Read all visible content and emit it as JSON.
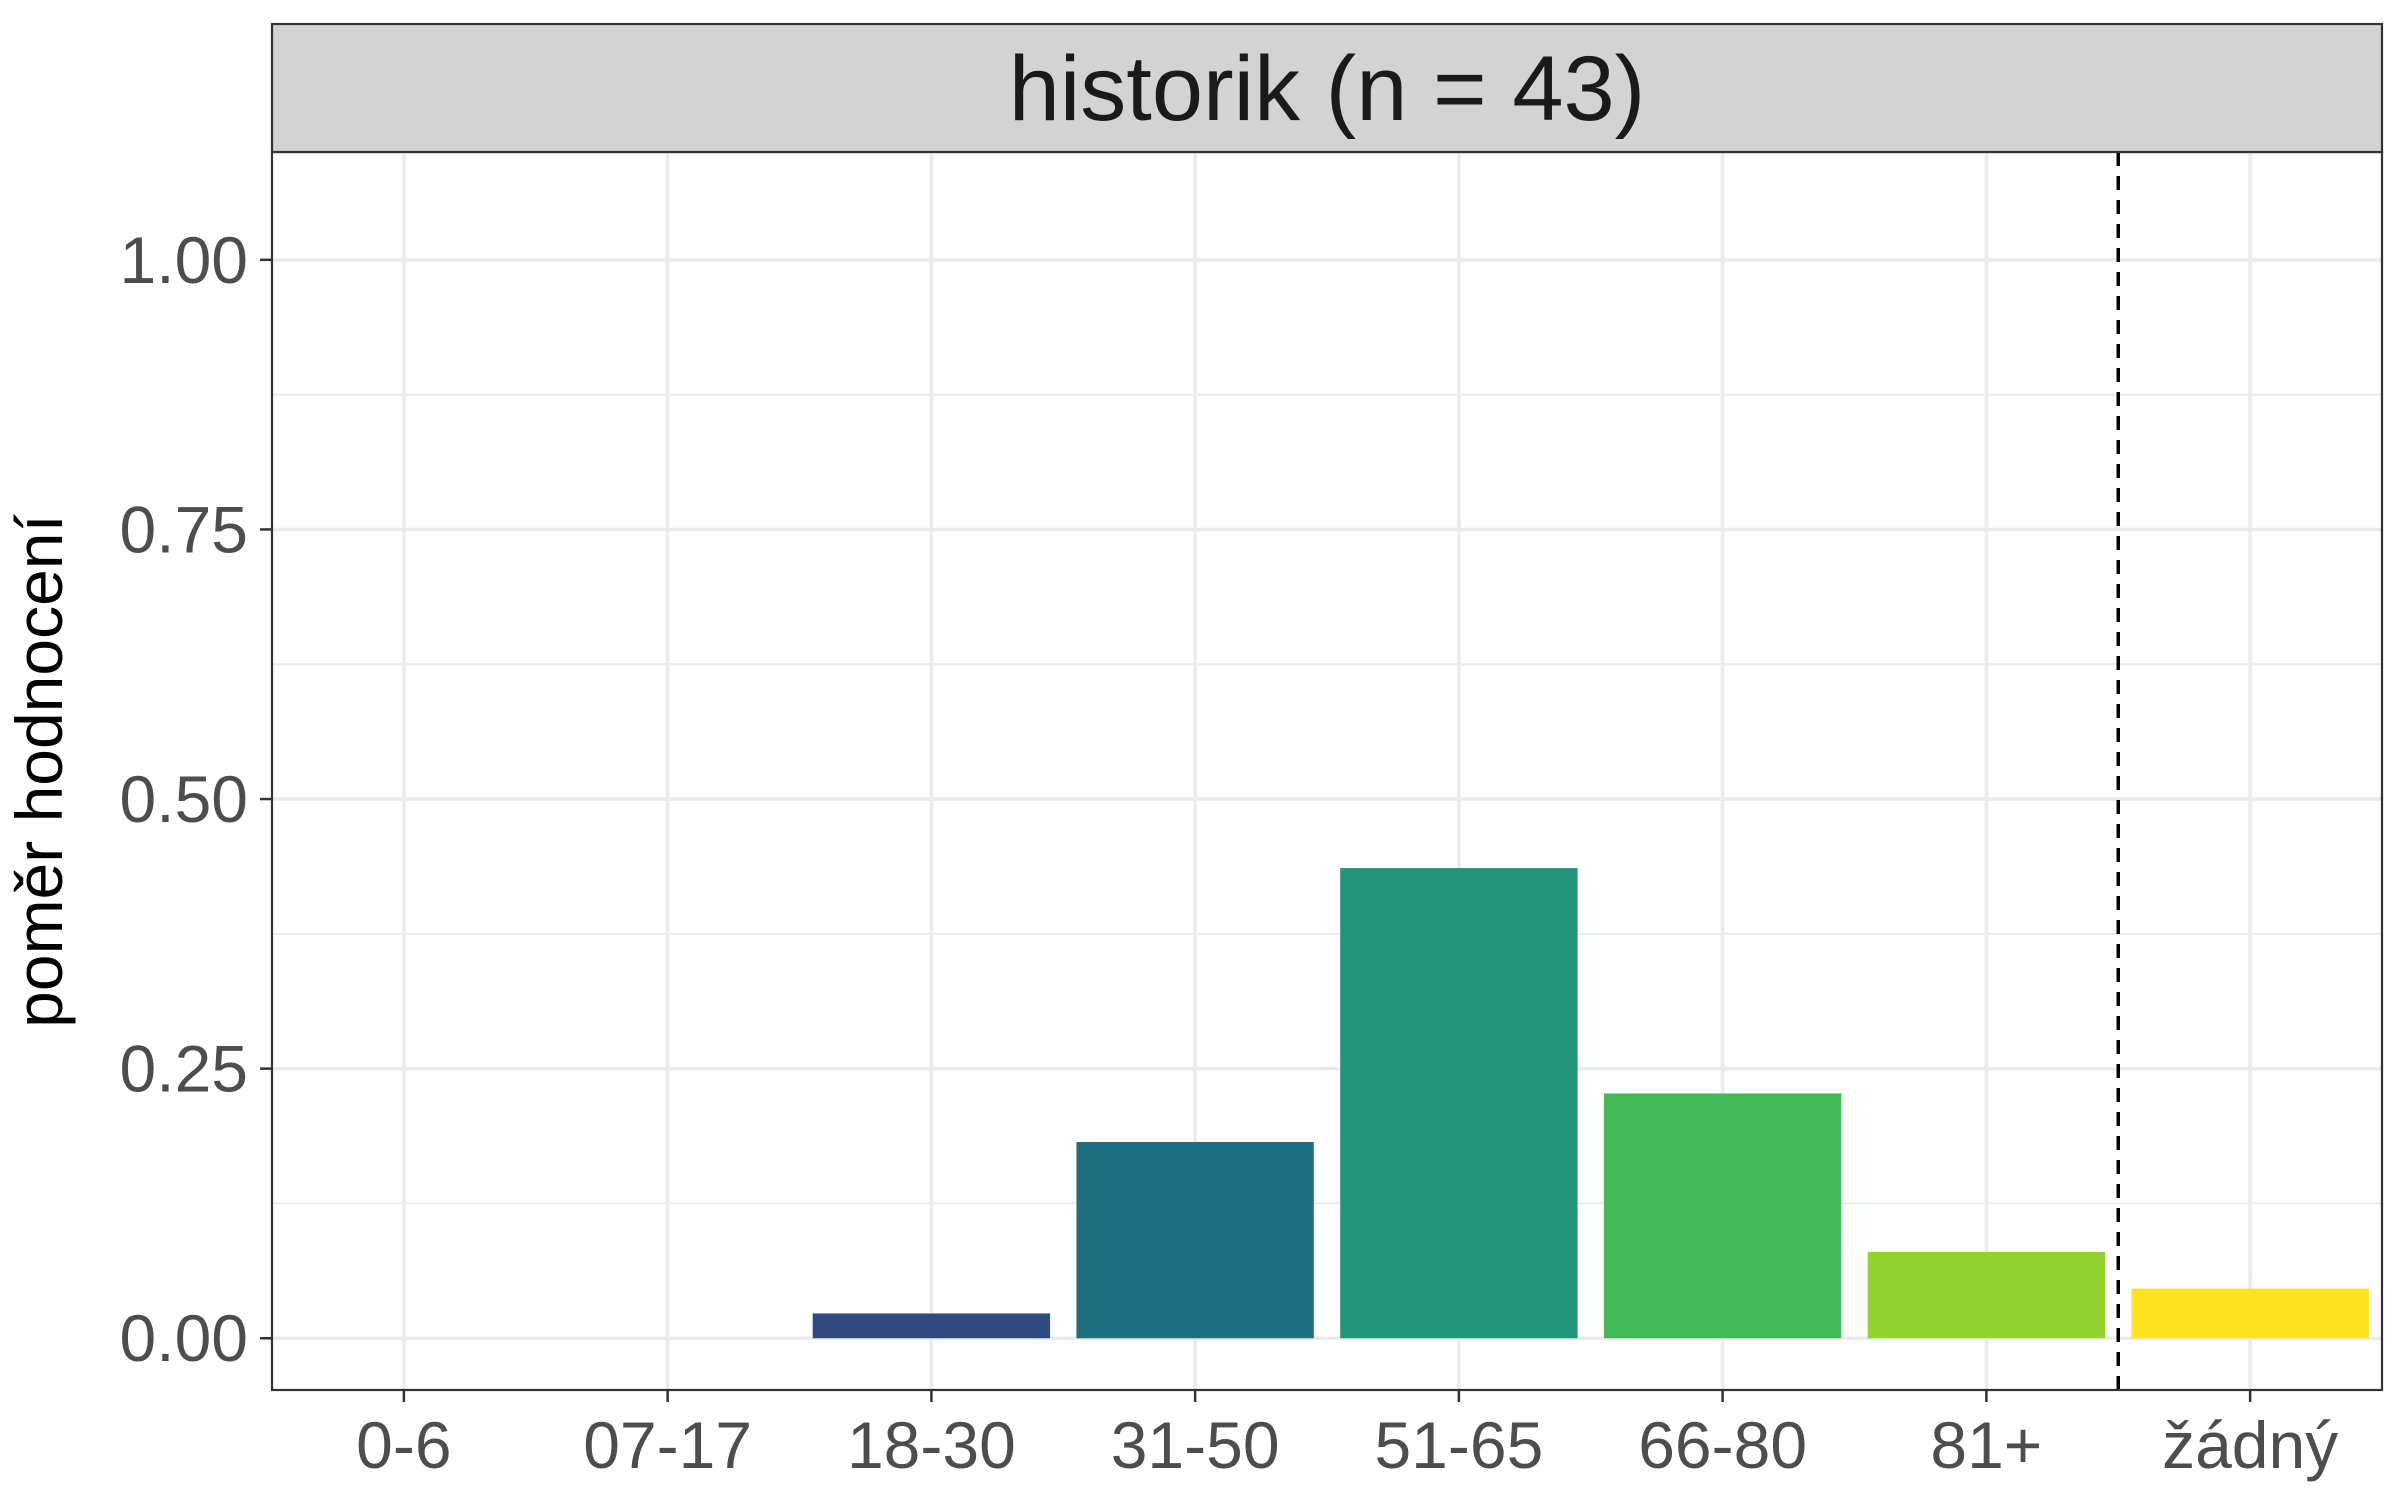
{
  "chart_data": {
    "type": "bar",
    "title": "historik (n = 43)",
    "xlabel": "",
    "ylabel": "poměr hodnocení",
    "categories": [
      "0-6",
      "07-17",
      "18-30",
      "31-50",
      "51-65",
      "66-80",
      "81+",
      "žádný"
    ],
    "values": [
      0,
      0,
      0.023,
      0.182,
      0.436,
      0.227,
      0.08,
      0.046
    ],
    "colors": [
      "#440154",
      "#46337e",
      "#2e4a7e",
      "#206f7e",
      "#21947a",
      "#43b95a",
      "#90d32e",
      "#fde31f"
    ],
    "ylim": [
      -0.048,
      1.1
    ],
    "yticks": [
      0,
      0.25,
      0.5,
      0.75,
      1
    ],
    "ytick_labels": [
      "0.00",
      "0.25",
      "0.50",
      "0.75",
      "1.00"
    ],
    "reference_line": {
      "after_category": "81+",
      "style": "dashed",
      "color": "#000000"
    },
    "grid": true,
    "legend": "none",
    "strip_background": "#d3d3d3",
    "grid_color": "#ebebeb",
    "panel_border_color": "#333333"
  }
}
